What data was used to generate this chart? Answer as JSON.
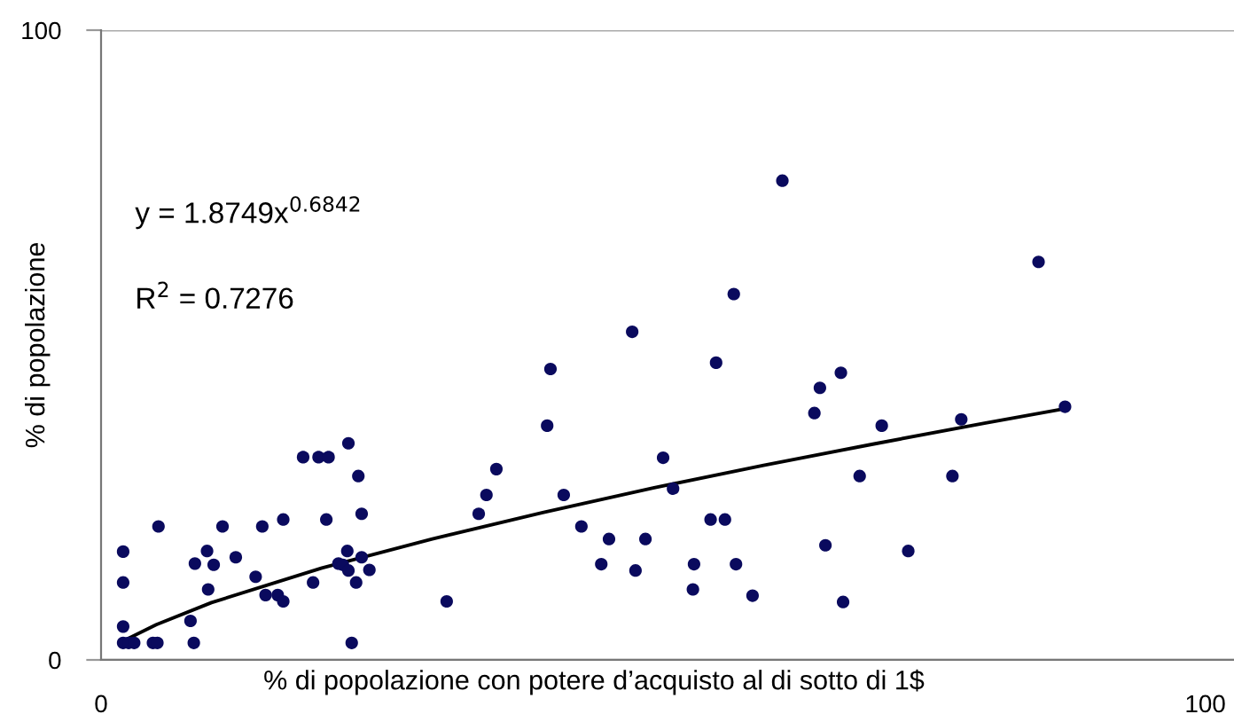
{
  "chart_data": {
    "type": "scatter",
    "xlabel": "% di popolazione con potere d’acquisto al di sotto di 1$",
    "ylabel": "% di popolazione",
    "xlim": [
      0,
      102.6
    ],
    "ylim": [
      0,
      100
    ],
    "xticks": [
      0,
      100
    ],
    "yticks": [
      0,
      100
    ],
    "grid": "y",
    "marker": "circle",
    "legend": false,
    "annotations": [
      "y = 1.8749x$^{0.6842}$",
      "R$^{2}$ = 0.7276"
    ],
    "series": [
      {
        "color": "#0a0a5e",
        "x": [
          2.0,
          2.0,
          2.0,
          2.0,
          2.5,
          3.0,
          4.7,
          5.1,
          5.2,
          8.1,
          8.4,
          8.5,
          9.6,
          9.7,
          10.2,
          11.0,
          12.2,
          14.0,
          14.6,
          14.9,
          16.0,
          16.5,
          16.5,
          18.3,
          19.7,
          20.6,
          19.2,
          20.4,
          22.4,
          23.3,
          23.6,
          22.3,
          21.5,
          21.9,
          22.4,
          23.6,
          24.3,
          23.1,
          22.7,
          31.3,
          34.2,
          34.9,
          35.8,
          40.4,
          40.7,
          41.9,
          43.5,
          45.3,
          46.0,
          61.7,
          84.9,
          57.3,
          48.1,
          55.7,
          67.0,
          65.1,
          64.6,
          70.7,
          77.9,
          87.3,
          50.9,
          51.8,
          68.7,
          77.1,
          55.2,
          56.5,
          49.3,
          65.6,
          73.1,
          48.4,
          53.7,
          57.5,
          53.6,
          59.0,
          67.2
        ],
        "values": [
          17.2,
          12.3,
          5.3,
          2.7,
          2.7,
          2.7,
          2.7,
          2.7,
          21.2,
          6.2,
          2.7,
          15.3,
          17.3,
          11.2,
          15.1,
          21.2,
          16.3,
          13.2,
          21.2,
          10.3,
          10.3,
          9.3,
          22.3,
          32.2,
          32.2,
          32.2,
          12.3,
          22.3,
          34.4,
          29.2,
          23.2,
          17.3,
          15.3,
          15.1,
          14.2,
          16.3,
          14.3,
          12.3,
          2.7,
          9.3,
          23.2,
          26.2,
          30.3,
          37.2,
          46.2,
          26.2,
          21.2,
          15.2,
          19.2,
          76.1,
          63.2,
          58.1,
          52.1,
          47.2,
          45.6,
          43.2,
          39.2,
          37.2,
          38.2,
          40.2,
          32.1,
          27.2,
          29.2,
          29.2,
          22.3,
          22.3,
          19.2,
          18.2,
          17.3,
          14.2,
          15.2,
          15.2,
          11.2,
          10.2,
          9.2
        ]
      },
      {
        "type": "line",
        "color": "#000000",
        "marker": "none",
        "line_style": "solid",
        "x": [
          2,
          5,
          10,
          20,
          30,
          40,
          50,
          60,
          70,
          80,
          87.3
        ],
        "values": [
          3.0,
          5.6,
          9.1,
          14.6,
          19.2,
          23.4,
          27.3,
          30.9,
          34.3,
          37.6,
          39.9
        ]
      }
    ]
  }
}
